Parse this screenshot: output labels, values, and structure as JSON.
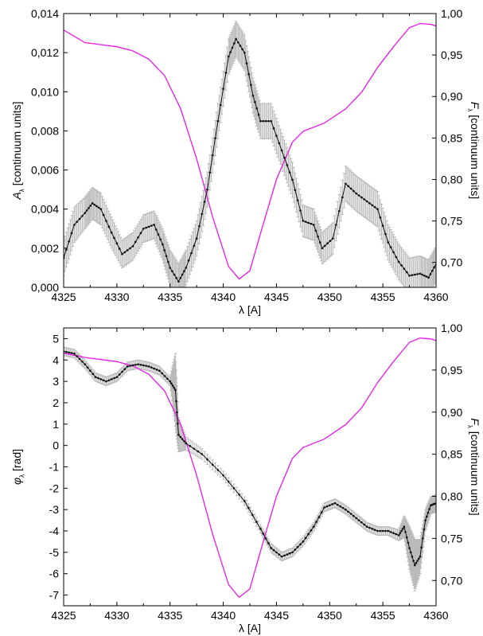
{
  "chart_data": [
    {
      "type": "line",
      "panel": "top",
      "x": [
        4325,
        4326,
        4327,
        4327.7,
        4328.5,
        4329.5,
        4330.5,
        4331.5,
        4332.5,
        4333.5,
        4334.3,
        4335,
        4335.8,
        4336.5,
        4337.5,
        4338.5,
        4339.5,
        4340.5,
        4341.2,
        4342,
        4342.8,
        4343.5,
        4344.5,
        4345.5,
        4346.5,
        4347.5,
        4348.5,
        4349.3,
        4350.3,
        4351.5,
        4352.5,
        4353.5,
        4354.5,
        4355.5,
        4356.5,
        4357.5,
        4358.5,
        4359.3,
        4360
      ],
      "series": [
        {
          "values": [
            0.0015,
            0.0032,
            0.0038,
            0.0043,
            0.004,
            0.0028,
            0.0017,
            0.0021,
            0.003,
            0.0032,
            0.0022,
            0.001,
            0.0003,
            0.001,
            0.0025,
            0.005,
            0.0085,
            0.0118,
            0.0127,
            0.012,
            0.0098,
            0.0085,
            0.0085,
            0.007,
            0.0055,
            0.0034,
            0.0032,
            0.002,
            0.0025,
            0.0053,
            0.0048,
            0.0044,
            0.004,
            0.0023,
            0.0013,
            0.0006,
            0.0007,
            0.0005,
            0.0012
          ],
          "errors": [
            0.0009,
            0.0009,
            0.0008,
            0.0008,
            0.0008,
            0.0008,
            0.0007,
            0.0007,
            0.0007,
            0.0007,
            0.0008,
            0.0009,
            0.0009,
            0.0009,
            0.0009,
            0.0009,
            0.0009,
            0.0009,
            0.0009,
            0.0009,
            0.0009,
            0.0009,
            0.0009,
            0.0009,
            0.0009,
            0.0008,
            0.0008,
            0.0008,
            0.0008,
            0.0009,
            0.0009,
            0.0009,
            0.0009,
            0.0009,
            0.0009,
            0.0009,
            0.0009,
            0.0009,
            0.0009
          ],
          "color": "#111111",
          "error_color": "#b8b8b8"
        }
      ],
      "flux": {
        "x": [
          4325,
          4327,
          4330,
          4331.5,
          4333,
          4334.5,
          4336,
          4337.5,
          4339,
          4340.5,
          4341.5,
          4342.5,
          4343.5,
          4345,
          4346.5,
          4347.5,
          4349.5,
          4351.5,
          4353,
          4354.5,
          4356,
          4357.5,
          4358.5,
          4359.5,
          4360
        ],
        "values": [
          0.98,
          0.965,
          0.96,
          0.955,
          0.945,
          0.925,
          0.885,
          0.825,
          0.755,
          0.695,
          0.68,
          0.69,
          0.735,
          0.8,
          0.845,
          0.858,
          0.868,
          0.885,
          0.905,
          0.935,
          0.96,
          0.983,
          0.988,
          0.987,
          0.985
        ],
        "color": "#ee16ee"
      },
      "xlabel": "λ [A]",
      "ylabel": "A",
      "ylabel_sub": "λ",
      "ylabel_suffix": " [continuum units]",
      "y2label": "F",
      "y2label_sub": "λ",
      "y2label_suffix": " [continuum units]",
      "xlim": [
        4325,
        4360
      ],
      "ylim": [
        0,
        0.014
      ],
      "y2lim": [
        0.67,
        1.0
      ],
      "xticks": [
        "4325",
        "4330",
        "4335",
        "4340",
        "4345",
        "4350",
        "4355",
        "4360"
      ],
      "yticks": [
        "0,000",
        "0,002",
        "0,004",
        "0,006",
        "0,008",
        "0,010",
        "0,012",
        "0,014"
      ],
      "y2ticks": [
        "0,70",
        "0,75",
        "0,80",
        "0,85",
        "0,90",
        "0,95",
        "1,00"
      ]
    },
    {
      "type": "line",
      "panel": "bottom",
      "x": [
        4325,
        4326,
        4327,
        4328,
        4329,
        4330,
        4331,
        4332,
        4333,
        4334,
        4335,
        4335.5,
        4335.8,
        4336.5,
        4338,
        4340,
        4342,
        4343.5,
        4344.5,
        4345.5,
        4346.5,
        4347.5,
        4348.5,
        4349.5,
        4350.5,
        4351.5,
        4352.5,
        4353.5,
        4354.5,
        4355.5,
        4356.5,
        4357,
        4357.5,
        4358,
        4358.5,
        4359,
        4359.5,
        4360
      ],
      "series": [
        {
          "values": [
            4.4,
            4.3,
            3.8,
            3.2,
            3.0,
            3.2,
            3.7,
            3.8,
            3.7,
            3.5,
            3.0,
            2.6,
            0.5,
            0.1,
            -0.4,
            -1.4,
            -2.6,
            -3.9,
            -4.8,
            -5.2,
            -5.0,
            -4.5,
            -3.8,
            -2.9,
            -2.7,
            -3.0,
            -3.4,
            -3.8,
            -4.0,
            -4.0,
            -4.2,
            -3.8,
            -4.8,
            -5.6,
            -5.2,
            -3.5,
            -2.8,
            -2.7
          ],
          "errors": [
            0.2,
            0.2,
            0.2,
            0.2,
            0.2,
            0.2,
            0.2,
            0.2,
            0.2,
            0.2,
            0.2,
            1.7,
            0.8,
            0.3,
            0.25,
            0.2,
            0.2,
            0.2,
            0.2,
            0.2,
            0.2,
            0.2,
            0.2,
            0.2,
            0.2,
            0.2,
            0.2,
            0.2,
            0.2,
            0.2,
            0.25,
            0.5,
            1.0,
            1.2,
            0.8,
            0.5,
            0.4,
            0.4
          ],
          "color": "#111111",
          "error_color": "#b8b8b8"
        }
      ],
      "flux": {
        "x": [
          4325,
          4327,
          4330,
          4331.5,
          4333,
          4334.5,
          4336,
          4337.5,
          4339,
          4340.5,
          4341.5,
          4342.5,
          4343.5,
          4345,
          4346.5,
          4347.5,
          4349.5,
          4351.5,
          4353,
          4354.5,
          4356,
          4357.5,
          4358.5,
          4359.5,
          4360
        ],
        "values": [
          0.97,
          0.965,
          0.96,
          0.955,
          0.945,
          0.925,
          0.885,
          0.825,
          0.755,
          0.695,
          0.68,
          0.69,
          0.735,
          0.8,
          0.845,
          0.858,
          0.868,
          0.885,
          0.905,
          0.935,
          0.96,
          0.983,
          0.988,
          0.987,
          0.985
        ],
        "color": "#ee16ee"
      },
      "xlabel": "λ [A]",
      "ylabel": "φ",
      "ylabel_sub": "λ",
      "ylabel_suffix": " [rad]",
      "y2label": "F",
      "y2label_sub": "λ",
      "y2label_suffix": " [continuum units]",
      "xlim": [
        4325,
        4360
      ],
      "ylim": [
        -7.5,
        5.5
      ],
      "y2lim": [
        0.67,
        1.0
      ],
      "xticks": [
        "4325",
        "4330",
        "4335",
        "4340",
        "4345",
        "4350",
        "4355",
        "4360"
      ],
      "yticks": [
        "-7",
        "-6",
        "-5",
        "-4",
        "-3",
        "-2",
        "-1",
        "0",
        "1",
        "2",
        "3",
        "4",
        "5"
      ],
      "y2ticks": [
        "0,70",
        "0,75",
        "0,80",
        "0,85",
        "0,90",
        "0,95",
        "1,00"
      ]
    }
  ]
}
